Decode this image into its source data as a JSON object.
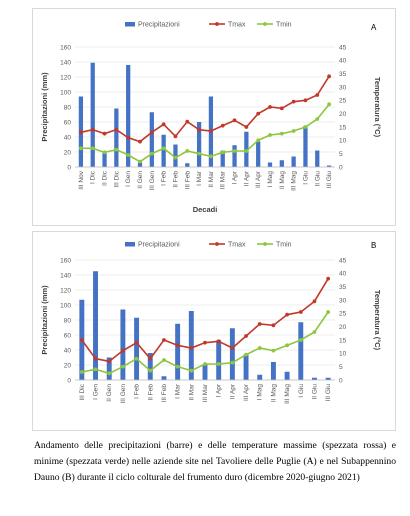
{
  "charts": [
    {
      "panel_label": "A",
      "chart_data": {
        "type": "bar+line",
        "categories": [
          "III Nov",
          "I Dic",
          "II Dic",
          "III Dic",
          "I Gen",
          "II Gen",
          "III Gen",
          "I Feb",
          "II Feb",
          "III Feb",
          "I Mar",
          "II Mar",
          "III Mar",
          "I Apr",
          "II Apr",
          "III Apr",
          "I Mag",
          "II Mag",
          "III Mag",
          "I Giu",
          "II Giu",
          "III Giu"
        ],
        "bars": {
          "name": "Precipitazioni",
          "axis": "left",
          "color": "#4472C4",
          "values": [
            94,
            139,
            19,
            78,
            136,
            6,
            73,
            43,
            30,
            5,
            60,
            94,
            22,
            29,
            47,
            34,
            6,
            9,
            14,
            55,
            22,
            2
          ]
        },
        "lines": [
          {
            "name": "Tmax",
            "axis": "right",
            "color": "#C0392B",
            "values": [
              13,
              14,
              12.5,
              14,
              11,
              9.5,
              13,
              16,
              11.5,
              17,
              14,
              13.5,
              15.5,
              17.5,
              15,
              20,
              22.5,
              22,
              24.5,
              25,
              27,
              34
            ]
          },
          {
            "name": "Tmin",
            "axis": "right",
            "color": "#8DC63F",
            "values": [
              7,
              7,
              5.5,
              6.5,
              4.5,
              2,
              5,
              7,
              3.5,
              6,
              5,
              4,
              5.5,
              6,
              6,
              10,
              12,
              12.5,
              13.5,
              15,
              18,
              23.5
            ]
          }
        ],
        "xlabel": "Decadi",
        "ylabel_left": "Precipitazioni (mm)",
        "ylabel_right": "Temperatura (°C)",
        "ylim_left": [
          0,
          160
        ],
        "yticks_left": [
          "0",
          "20",
          "40",
          "60",
          "80",
          "100",
          "120",
          "140",
          "160"
        ],
        "ylim_right": [
          0,
          45
        ],
        "yticks_right": [
          "0",
          "5",
          "10",
          "15",
          "20",
          "25",
          "30",
          "35",
          "40",
          "45"
        ],
        "legend": "top",
        "grid": "horizontal"
      }
    },
    {
      "panel_label": "B",
      "chart_data": {
        "type": "bar+line",
        "categories": [
          "III Dic",
          "I Gen",
          "II Gen",
          "III Gen",
          "I Feb",
          "II Feb",
          "III Feb",
          "I Mar",
          "II Mar",
          "III Mar",
          "I Apr",
          "II Apr",
          "III Apr",
          "I Mag",
          "II Mag",
          "III Mag",
          "I Giu",
          "II Giu",
          "III Giu"
        ],
        "bars": {
          "name": "Precipitazioni",
          "axis": "left",
          "color": "#4472C4",
          "values": [
            107,
            145,
            30,
            94,
            83,
            36,
            5,
            75,
            92,
            21,
            53,
            69,
            34,
            7,
            24,
            11,
            77,
            3,
            3
          ]
        },
        "lines": [
          {
            "name": "Tmax",
            "axis": "right",
            "color": "#C0392B",
            "values": [
              15,
              8,
              7,
              11,
              14,
              8,
              15,
              13,
              12,
              14,
              14.5,
              12,
              16.5,
              21,
              20.5,
              24.5,
              25.5,
              29.5,
              38
            ]
          },
          {
            "name": "Tmin",
            "axis": "right",
            "color": "#8DC63F",
            "values": [
              3,
              4,
              2.5,
              5,
              8,
              3.5,
              7.5,
              5,
              3.5,
              6,
              6,
              6.5,
              9.5,
              12,
              11,
              13,
              15,
              18,
              25.5
            ]
          }
        ],
        "xlabel": "",
        "ylabel_left": "Precipitazioni (mm)",
        "ylabel_right": "Temperatura (°C)",
        "ylim_left": [
          0,
          160
        ],
        "yticks_left": [
          "0",
          "20",
          "40",
          "60",
          "80",
          "100",
          "120",
          "140",
          "160"
        ],
        "ylim_right": [
          0,
          45
        ],
        "yticks_right": [
          "0",
          "5",
          "10",
          "15",
          "20",
          "25",
          "30",
          "35",
          "40",
          "45"
        ],
        "legend": "top",
        "grid": "horizontal"
      }
    }
  ],
  "caption": "Andamento delle precipitazioni (barre) e delle temperature massime (spezzata rossa) e minime (spezzata verde) nelle aziende site nel Tavoliere delle Puglie (A) e nel Subappennino Dauno (B) durante il ciclo colturale del frumento duro (dicembre 2020-giugno 2021)"
}
